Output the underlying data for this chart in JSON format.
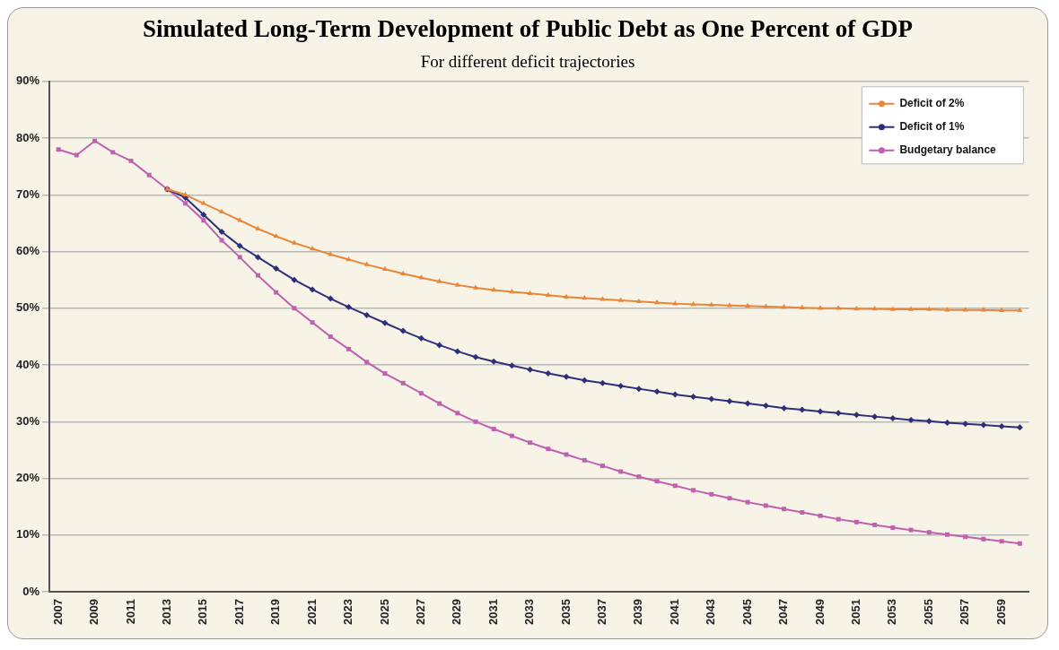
{
  "chart_data": {
    "type": "line",
    "title": "Simulated Long-Term Development of Public Debt as One Percent of GDP",
    "subtitle": "For different deficit trajectories",
    "categories": [
      "2007",
      null,
      "2009",
      null,
      "2011",
      null,
      "2013",
      null,
      "2015",
      null,
      "2017",
      null,
      "2019",
      null,
      "2021",
      null,
      "2023",
      null,
      "2025",
      null,
      "2027",
      null,
      "2029",
      null,
      "2031",
      null,
      "2033",
      null,
      "2035",
      null,
      "2037",
      null,
      "2039",
      null,
      "2041",
      null,
      "2043",
      null,
      "2045",
      null,
      "2047",
      null,
      "2049",
      null,
      "2051",
      null,
      "2053",
      null,
      "2055",
      null,
      "2057",
      null,
      "2059",
      null
    ],
    "series": [
      {
        "name": "Deficit of 2%",
        "color": "#e8863a",
        "marker": "triangle",
        "values": [
          null,
          null,
          null,
          null,
          null,
          null,
          71,
          70,
          68.5,
          67,
          65.5,
          64,
          62.7,
          61.5,
          60.5,
          59.5,
          58.6,
          57.7,
          56.9,
          56.1,
          55.4,
          54.7,
          54.1,
          53.6,
          53.2,
          52.9,
          52.6,
          52.3,
          52,
          51.8,
          51.6,
          51.4,
          51.2,
          51,
          50.8,
          50.7,
          50.6,
          50.5,
          50.4,
          50.3,
          50.2,
          50.1,
          50,
          50,
          49.9,
          49.9,
          49.8,
          49.8,
          49.8,
          49.7,
          49.7,
          49.7,
          49.6,
          49.6
        ]
      },
      {
        "name": "Deficit of 1%",
        "color": "#2e2f7a",
        "marker": "diamond",
        "values": [
          null,
          null,
          null,
          null,
          null,
          null,
          71,
          69.5,
          66.5,
          63.5,
          61,
          59,
          57,
          55,
          53.3,
          51.7,
          50.2,
          48.8,
          47.4,
          46,
          44.7,
          43.5,
          42.4,
          41.4,
          40.6,
          39.9,
          39.2,
          38.5,
          37.9,
          37.3,
          36.8,
          36.3,
          35.8,
          35.3,
          34.8,
          34.4,
          34,
          33.6,
          33.2,
          32.8,
          32.4,
          32.1,
          31.8,
          31.5,
          31.2,
          30.9,
          30.6,
          30.3,
          30.1,
          29.8,
          29.6,
          29.4,
          29.2,
          29
        ]
      },
      {
        "name": "Budgetary balance",
        "color": "#c060b0",
        "marker": "square",
        "values": [
          78,
          77,
          79.5,
          77.5,
          76,
          73.5,
          71,
          68.5,
          65.5,
          62,
          59,
          55.8,
          52.8,
          50,
          47.5,
          45,
          42.8,
          40.5,
          38.5,
          36.8,
          35,
          33.2,
          31.5,
          30,
          28.7,
          27.5,
          26.3,
          25.2,
          24.2,
          23.2,
          22.2,
          21.2,
          20.3,
          19.5,
          18.7,
          17.9,
          17.2,
          16.5,
          15.8,
          15.2,
          14.6,
          14,
          13.4,
          12.8,
          12.3,
          11.8,
          11.3,
          10.9,
          10.5,
          10.1,
          9.7,
          9.3,
          8.9,
          8.5
        ]
      }
    ],
    "ylim": [
      0,
      90
    ],
    "yticks": [
      {
        "value": 0,
        "label": "0%"
      },
      {
        "value": 10,
        "label": "10%"
      },
      {
        "value": 20,
        "label": "20%"
      },
      {
        "value": 30,
        "label": "30%"
      },
      {
        "value": 40,
        "label": "40%"
      },
      {
        "value": 50,
        "label": "50%"
      },
      {
        "value": 60,
        "label": "60%"
      },
      {
        "value": 70,
        "label": "70%"
      },
      {
        "value": 80,
        "label": "80%"
      },
      {
        "value": 90,
        "label": "90%"
      }
    ],
    "grid": "y",
    "legend": "top right",
    "line_style": "solid"
  }
}
